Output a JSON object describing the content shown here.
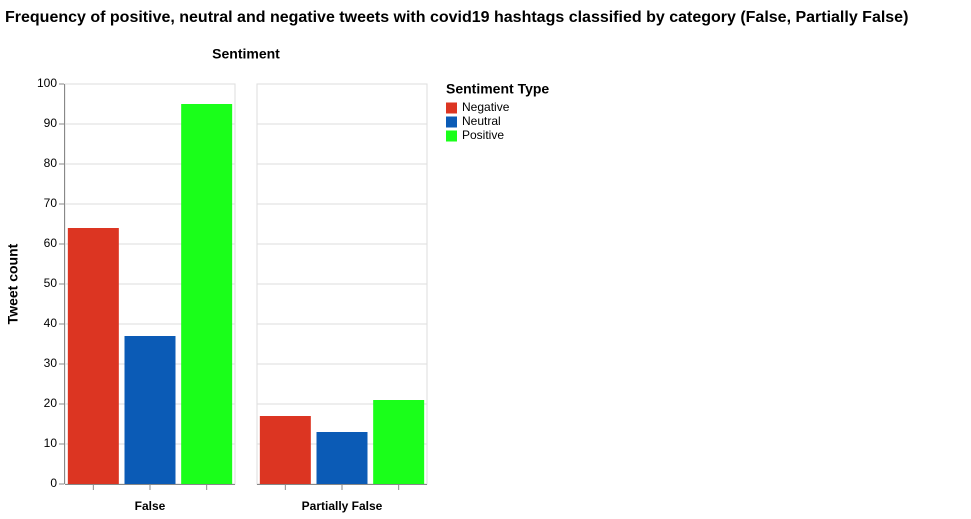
{
  "chart_data": {
    "type": "bar",
    "title": "Frequency of positive, neutral and negative tweets with covid19 hashtags classified by category (False, Partially False)",
    "facet_title": "Sentiment",
    "categories": [
      "False",
      "Partially False"
    ],
    "y_label": "Tweet count",
    "legend_title": "Sentiment Type",
    "series": [
      {
        "name": "Negative",
        "color": "#dc3522",
        "values": [
          64,
          17
        ]
      },
      {
        "name": "Neutral",
        "color": "#0b5bb6",
        "values": [
          37,
          13
        ]
      },
      {
        "name": "Positive",
        "color": "#1aff1a",
        "values": [
          95,
          21
        ]
      }
    ],
    "ylim": [
      0,
      100
    ],
    "yticks": [
      0,
      10,
      20,
      30,
      40,
      50,
      60,
      70,
      80,
      90,
      100
    ],
    "grid": true
  }
}
